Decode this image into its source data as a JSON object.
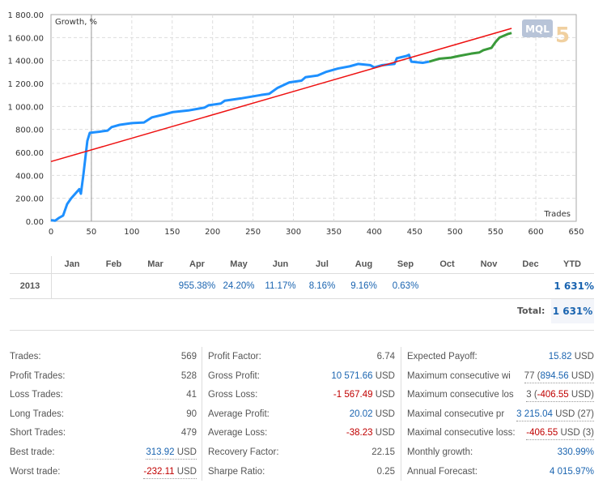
{
  "chart_data": {
    "type": "line",
    "title": "Growth, %",
    "xlabel": "Trades",
    "xlim": [
      0,
      650
    ],
    "ylim": [
      0,
      1800
    ],
    "xticks": [
      0,
      50,
      100,
      150,
      200,
      250,
      300,
      350,
      400,
      450,
      500,
      550,
      600,
      650
    ],
    "yticks": [
      "0.00",
      "200.00",
      "400.00",
      "600.00",
      "800.00",
      "1 000.00",
      "1 200.00",
      "1 400.00",
      "1 600.00",
      "1 800.00"
    ],
    "grid": true,
    "marker_line_x": 50,
    "series": [
      {
        "color": "#1e90ff",
        "points": [
          [
            0,
            10
          ],
          [
            5,
            5
          ],
          [
            10,
            30
          ],
          [
            15,
            50
          ],
          [
            20,
            150
          ],
          [
            25,
            200
          ],
          [
            35,
            280
          ],
          [
            37,
            240
          ],
          [
            40,
            400
          ],
          [
            45,
            700
          ],
          [
            48,
            770
          ],
          [
            60,
            780
          ],
          [
            70,
            790
          ],
          [
            75,
            820
          ],
          [
            85,
            840
          ],
          [
            100,
            855
          ],
          [
            115,
            860
          ],
          [
            125,
            905
          ],
          [
            140,
            930
          ],
          [
            150,
            950
          ],
          [
            170,
            965
          ],
          [
            190,
            990
          ],
          [
            195,
            1010
          ],
          [
            210,
            1025
          ],
          [
            215,
            1050
          ],
          [
            235,
            1070
          ],
          [
            260,
            1100
          ],
          [
            270,
            1110
          ],
          [
            280,
            1160
          ],
          [
            295,
            1210
          ],
          [
            310,
            1225
          ],
          [
            315,
            1255
          ],
          [
            330,
            1270
          ],
          [
            340,
            1300
          ],
          [
            355,
            1330
          ],
          [
            370,
            1350
          ],
          [
            380,
            1370
          ],
          [
            395,
            1360
          ],
          [
            400,
            1340
          ],
          [
            410,
            1360
          ],
          [
            425,
            1370
          ],
          [
            428,
            1420
          ],
          [
            440,
            1440
          ],
          [
            443,
            1450
          ],
          [
            446,
            1390
          ],
          [
            460,
            1380
          ],
          [
            468,
            1390
          ]
        ]
      },
      {
        "color": "#3a9a3a",
        "points": [
          [
            468,
            1390
          ],
          [
            480,
            1415
          ],
          [
            495,
            1425
          ],
          [
            505,
            1440
          ],
          [
            520,
            1460
          ],
          [
            530,
            1470
          ],
          [
            535,
            1490
          ],
          [
            545,
            1510
          ],
          [
            550,
            1560
          ],
          [
            555,
            1600
          ],
          [
            565,
            1630
          ],
          [
            570,
            1640
          ]
        ]
      },
      {
        "color": "#ee1111",
        "points": [
          [
            0,
            520
          ],
          [
            570,
            1680
          ]
        ]
      }
    ]
  },
  "logo": "MQL5 community",
  "monthly": {
    "headers": [
      "Jan",
      "Feb",
      "Mar",
      "Apr",
      "May",
      "Jun",
      "Jul",
      "Aug",
      "Sep",
      "Oct",
      "Nov",
      "Dec",
      "YTD"
    ],
    "year": "2013",
    "values": [
      "",
      "",
      "",
      "955.38%",
      "24.20%",
      "11.17%",
      "8.16%",
      "9.16%",
      "0.63%",
      "",
      "",
      "",
      ""
    ],
    "ytd": "1 631%",
    "total_label": "Total:",
    "total": "1 631%"
  },
  "stats": [
    [
      {
        "l": "Trades:",
        "v": "569"
      },
      {
        "l": "Profit Trades:",
        "v": "528"
      },
      {
        "l": "Loss Trades:",
        "v": "41"
      },
      {
        "l": "Long Trades:",
        "v": "90"
      },
      {
        "l": "Short Trades:",
        "v": "479"
      },
      {
        "l": "Best trade:",
        "v": "313.92",
        "u": " USD",
        "c": "blue",
        "d": true
      },
      {
        "l": "Worst trade:",
        "v": "-232.11",
        "u": " USD",
        "c": "red",
        "d": true
      }
    ],
    [
      {
        "l": "Profit Factor:",
        "v": "6.74"
      },
      {
        "l": "Gross Profit:",
        "v": "10 571.66",
        "u": " USD",
        "c": "blue"
      },
      {
        "l": "Gross Loss:",
        "v": "-1 567.49",
        "u": " USD",
        "c": "red"
      },
      {
        "l": "Average Profit:",
        "v": "20.02",
        "u": " USD",
        "c": "blue"
      },
      {
        "l": "Average Loss:",
        "v": "-38.23",
        "u": " USD",
        "c": "red"
      },
      {
        "l": "Recovery Factor:",
        "v": "22.15"
      },
      {
        "l": "Sharpe Ratio:",
        "v": "0.25"
      }
    ],
    [
      {
        "l": "Expected Payoff:",
        "v": "15.82",
        "u": " USD",
        "c": "blue"
      },
      {
        "l": "Maximum consecutive wi",
        "p": "77 (",
        "v": "894.56",
        "u": " USD)",
        "c": "blue",
        "d": true
      },
      {
        "l": "Maximum consecutive los",
        "p": "3 (",
        "v": "-406.55",
        "u": " USD)",
        "c": "red",
        "d": true
      },
      {
        "l": "Maximal consecutive pr",
        "v": "3 215.04",
        "u": " USD (27)",
        "c": "blue",
        "d": true
      },
      {
        "l": "Maximal consecutive loss:",
        "v": "-406.55",
        "u": " USD (3)",
        "c": "red",
        "d": true
      },
      {
        "l": "Monthly growth:",
        "v": "330.99%",
        "c": "blue"
      },
      {
        "l": "Annual Forecast:",
        "v": "4 015.97%",
        "c": "blue"
      }
    ]
  ]
}
